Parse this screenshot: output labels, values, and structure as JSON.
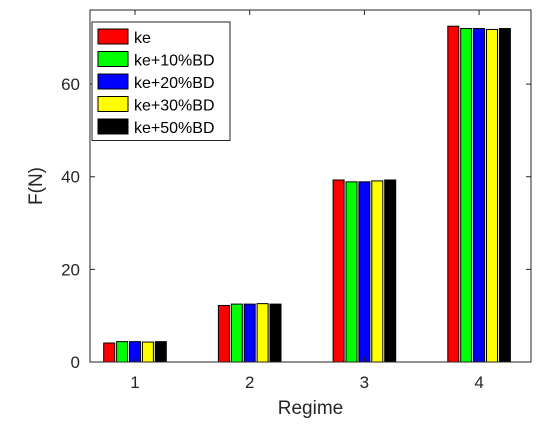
{
  "chart_data": {
    "type": "bar",
    "title": "",
    "xlabel": "Regime",
    "ylabel": "F(N)",
    "categories": [
      "1",
      "2",
      "3",
      "4"
    ],
    "ylim": [
      0,
      76
    ],
    "yticks": [
      "0",
      "20",
      "40",
      "60"
    ],
    "grid": false,
    "legend_placement": "top-left",
    "series": [
      {
        "name": "ke",
        "color": "#ff0000",
        "values": [
          4.1,
          12.2,
          39.3,
          72.5
        ]
      },
      {
        "name": "ke+10%BD",
        "color": "#00ff00",
        "values": [
          4.4,
          12.5,
          38.9,
          72.0
        ]
      },
      {
        "name": "ke+20%BD",
        "color": "#0000ff",
        "values": [
          4.4,
          12.5,
          38.9,
          72.0
        ]
      },
      {
        "name": "ke+30%BD",
        "color": "#ffff00",
        "values": [
          4.3,
          12.6,
          39.1,
          71.8
        ]
      },
      {
        "name": "ke+50%BD",
        "color": "#000000",
        "values": [
          4.4,
          12.5,
          39.3,
          72.0
        ]
      }
    ]
  }
}
